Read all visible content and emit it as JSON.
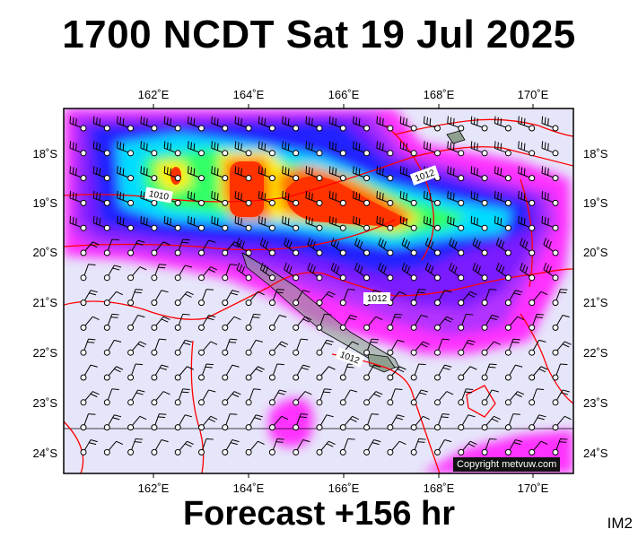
{
  "header": {
    "title": "1700 NCDT Sat 19 Jul 2025"
  },
  "footer": {
    "forecast": "Forecast +156 hr",
    "code": "IM2"
  },
  "map": {
    "copyright": "Copyright metvuw.com",
    "lon_labels": [
      "162˚E",
      "164˚E",
      "166˚E",
      "168˚E",
      "170˚E"
    ],
    "lat_labels": [
      "18˚S",
      "19˚S",
      "20˚S",
      "21˚S",
      "22˚S",
      "23˚S",
      "24˚S"
    ],
    "isobar_labels": [
      "1010",
      "1012",
      "1012",
      "1012"
    ],
    "colors": {
      "background": "#e6e6fa",
      "magenta": "#ff33ff",
      "violet": "#b233ff",
      "purple": "#7a1fff",
      "blue": "#2323ff",
      "cyan": "#00ddff",
      "green": "#33ff66",
      "yellow": "#ffee00",
      "orange": "#ff6a00",
      "red_core": "#ff3300",
      "isobar": "#ff0000",
      "land": "#90a090"
    }
  }
}
